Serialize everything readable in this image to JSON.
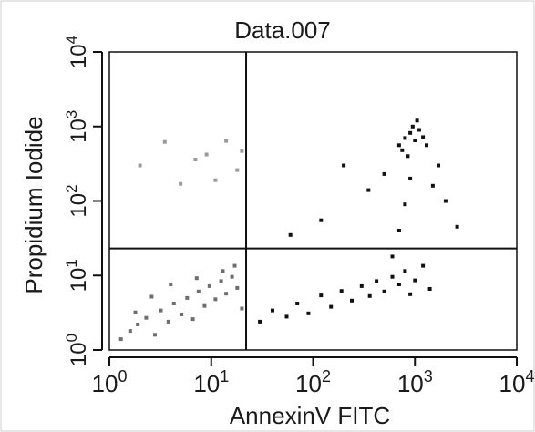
{
  "chart_data": {
    "type": "scatter",
    "title": "Data.007",
    "xlabel": "AnnexinV FITC",
    "ylabel": "Propidium Iodide",
    "xscale": "log",
    "yscale": "log",
    "xlim": [
      1,
      10000
    ],
    "ylim": [
      1,
      10000
    ],
    "x_ticks": [
      {
        "base": "10",
        "exp": "0",
        "value": 1
      },
      {
        "base": "10",
        "exp": "1",
        "value": 10
      },
      {
        "base": "10",
        "exp": "2",
        "value": 100
      },
      {
        "base": "10",
        "exp": "3",
        "value": 1000
      },
      {
        "base": "10",
        "exp": "4",
        "value": 10000
      }
    ],
    "y_ticks": [
      {
        "base": "10",
        "exp": "0",
        "value": 1
      },
      {
        "base": "10",
        "exp": "1",
        "value": 10
      },
      {
        "base": "10",
        "exp": "2",
        "value": 100
      },
      {
        "base": "10",
        "exp": "3",
        "value": 1000
      },
      {
        "base": "10",
        "exp": "4",
        "value": 10000
      }
    ],
    "quadrant_gates": {
      "x": 22,
      "y": 23
    },
    "grid": false,
    "series": [
      {
        "color": "#6e6e6e",
        "points": [
          [
            1.3,
            1.4
          ],
          [
            1.6,
            1.8
          ],
          [
            1.9,
            2.2
          ],
          [
            2.3,
            2.7
          ],
          [
            2.8,
            1.6
          ],
          [
            3.2,
            3.4
          ],
          [
            3.8,
            2.4
          ],
          [
            4.3,
            4.2
          ],
          [
            5.1,
            3.0
          ],
          [
            5.8,
            5.0
          ],
          [
            6.6,
            2.6
          ],
          [
            7.5,
            6.1
          ],
          [
            8.6,
            3.9
          ],
          [
            9.6,
            7.2
          ],
          [
            11,
            4.8
          ],
          [
            12.5,
            8.4
          ],
          [
            14,
            5.7
          ],
          [
            16,
            9.6
          ],
          [
            18,
            6.8
          ],
          [
            20,
            3.6
          ],
          [
            4.0,
            7.6
          ],
          [
            2.6,
            5.2
          ],
          [
            1.8,
            3.2
          ],
          [
            7.2,
            9.2
          ],
          [
            13,
            11.5
          ],
          [
            17,
            13.5
          ]
        ]
      },
      {
        "color": "#111111",
        "points": [
          [
            30,
            2.4
          ],
          [
            40,
            3.4
          ],
          [
            55,
            2.8
          ],
          [
            70,
            4.2
          ],
          [
            90,
            3.1
          ],
          [
            120,
            5.4
          ],
          [
            150,
            3.8
          ],
          [
            190,
            6.2
          ],
          [
            240,
            4.6
          ],
          [
            300,
            7.2
          ],
          [
            360,
            5.3
          ],
          [
            420,
            8.4
          ],
          [
            500,
            6.1
          ],
          [
            600,
            9.6
          ],
          [
            700,
            7.6
          ],
          [
            800,
            11.5
          ],
          [
            900,
            5.6
          ],
          [
            1000,
            8.6
          ],
          [
            1200,
            13.5
          ],
          [
            1400,
            6.6
          ],
          [
            600,
            18
          ],
          [
            700,
            40
          ],
          [
            800,
            90
          ],
          [
            900,
            200
          ],
          [
            850,
            400
          ],
          [
            700,
            560
          ],
          [
            800,
            700
          ],
          [
            900,
            820
          ],
          [
            1000,
            650
          ],
          [
            1100,
            900
          ],
          [
            1200,
            720
          ],
          [
            1300,
            560
          ],
          [
            950,
            1000
          ],
          [
            750,
            480
          ],
          [
            1050,
            1200
          ],
          [
            200,
            300
          ],
          [
            120,
            55
          ],
          [
            60,
            35
          ],
          [
            350,
            140
          ],
          [
            500,
            230
          ],
          [
            1500,
            160
          ],
          [
            1700,
            300
          ],
          [
            2000,
            100
          ],
          [
            2600,
            45
          ]
        ]
      },
      {
        "color": "#9a9a9a",
        "points": [
          [
            2.0,
            300
          ],
          [
            3.5,
            620
          ],
          [
            5.0,
            170
          ],
          [
            7.0,
            360
          ],
          [
            9.0,
            420
          ],
          [
            11,
            190
          ],
          [
            14,
            640
          ],
          [
            18,
            260
          ],
          [
            20,
            470
          ]
        ]
      }
    ]
  }
}
